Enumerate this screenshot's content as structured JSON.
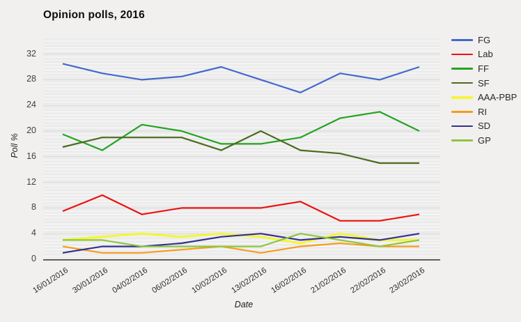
{
  "title": "Opinion polls, 2016",
  "chart_data": {
    "type": "line",
    "title": "Opinion polls, 2016",
    "xlabel": "Date",
    "ylabel": "Poll %",
    "x_tick_labels": [
      "16/01/2016",
      "30/01/2016",
      "04/02/2016",
      "06/02/2016",
      "10/02/2016",
      "13/02/2016",
      "16/02/2016",
      "21/02/2016",
      "22/02/2016",
      "23/02/2016"
    ],
    "yticks": [
      0,
      4,
      8,
      12,
      16,
      20,
      24,
      28,
      32
    ],
    "ylim": [
      0,
      34.5
    ],
    "grid": "horizontal: fine minor stripes + gray major lines, no vertical grid",
    "legend_position": "right",
    "axis_color": "#3c3c3c",
    "major_grid_color": "#d9d9d9",
    "series": [
      {
        "name": "FG",
        "color": "#4169cd",
        "width": 2.2,
        "values": [
          30.5,
          29,
          28,
          28.5,
          30,
          28,
          26,
          29,
          28,
          30
        ]
      },
      {
        "name": "Lab",
        "color": "#ed1111",
        "width": 2.2,
        "values": [
          7.5,
          10,
          7,
          8,
          8,
          8,
          9,
          6,
          6,
          7
        ]
      },
      {
        "name": "FF",
        "color": "#23a323",
        "width": 2.2,
        "values": [
          19.5,
          17,
          21,
          20,
          18,
          18,
          19,
          22,
          23,
          20
        ]
      },
      {
        "name": "SF",
        "color": "#4c6b1e",
        "width": 2.2,
        "values": [
          17.5,
          19,
          19,
          19,
          17,
          20,
          17,
          16.5,
          15,
          15
        ]
      },
      {
        "name": "AAA-PBP",
        "color": "#f5f53c",
        "width": 3.2,
        "values": [
          3,
          3.5,
          4,
          3.5,
          4,
          3.5,
          2.5,
          4,
          3,
          3
        ]
      },
      {
        "name": "RI",
        "color": "#f79c1e",
        "width": 2.2,
        "values": [
          2,
          1,
          1,
          1.5,
          2,
          1,
          2,
          2.5,
          2,
          2
        ]
      },
      {
        "name": "SD",
        "color": "#34308f",
        "width": 2.2,
        "values": [
          1,
          2,
          2,
          2.5,
          3.5,
          4,
          3,
          3.5,
          3,
          4
        ]
      },
      {
        "name": "GP",
        "color": "#8dc63f",
        "width": 2.2,
        "values": [
          3,
          3,
          2,
          2,
          2,
          2,
          4,
          3,
          2,
          3
        ]
      }
    ]
  }
}
